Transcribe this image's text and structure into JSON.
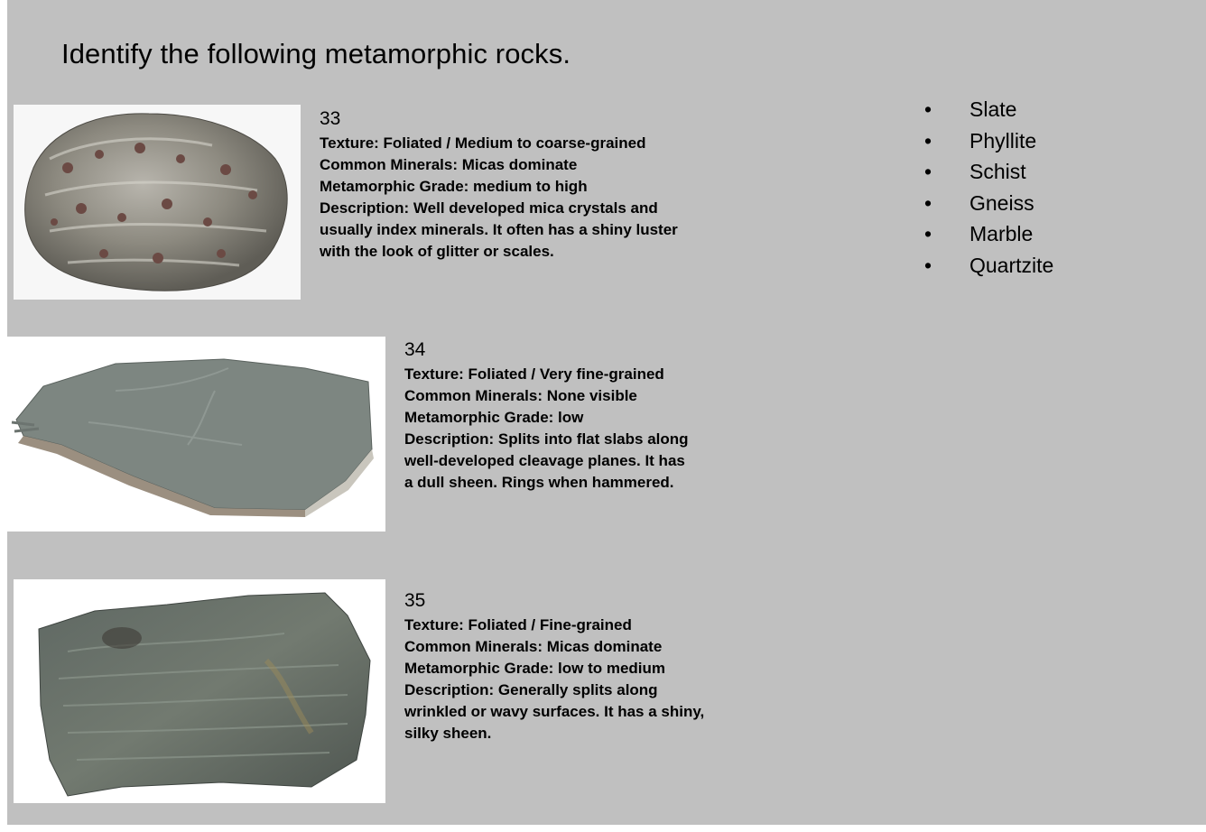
{
  "title": "Identify the following metamorphic rocks.",
  "items": [
    {
      "number": "33",
      "texture": "Texture: Foliated / Medium to coarse-grained",
      "minerals": "Common Minerals: Micas dominate",
      "grade": "Metamorphic Grade: medium to high",
      "description_lines": [
        "Description: Well developed mica crystals and",
        "usually index minerals. It often has a shiny luster",
        "with the look of glitter or scales."
      ]
    },
    {
      "number": "34",
      "texture": "Texture: Foliated / Very fine-grained",
      "minerals": "Common Minerals: None visible",
      "grade": "Metamorphic Grade: low",
      "description_lines": [
        "Description: Splits into flat slabs along",
        "well-developed cleavage planes. It has",
        "a dull sheen. Rings when hammered."
      ]
    },
    {
      "number": "35",
      "texture": "Texture: Foliated / Fine-grained",
      "minerals": "Common Minerals: Micas dominate",
      "grade": "Metamorphic Grade: low to medium",
      "description_lines": [
        "Description: Generally splits along",
        "wrinkled or wavy surfaces. It has a shiny,",
        "silky sheen."
      ]
    }
  ],
  "bullet_glyph": "•",
  "choices": [
    "Slate",
    "Phyllite",
    "Schist",
    "Gneiss",
    "Marble",
    "Quartzite"
  ]
}
